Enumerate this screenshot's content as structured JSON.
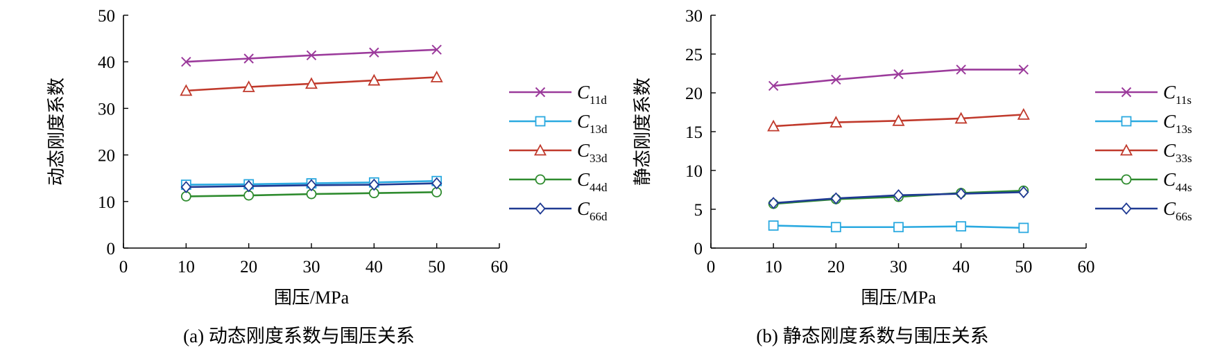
{
  "chart_data": [
    {
      "type": "line",
      "caption": "(a) 动态刚度系数与围压关系",
      "xlabel": "围压/MPa",
      "ylabel": "动态刚度系数",
      "xlim": [
        0,
        60
      ],
      "ylim": [
        0,
        50
      ],
      "xticks": [
        0,
        10,
        20,
        30,
        40,
        50,
        60
      ],
      "yticks": [
        0,
        10,
        20,
        30,
        40,
        50
      ],
      "x": [
        10,
        20,
        30,
        40,
        50
      ],
      "grid": false,
      "legend_position": "right",
      "series": [
        {
          "name": "C",
          "sub": "11d",
          "values": [
            40.0,
            40.7,
            41.4,
            42.0,
            42.6
          ],
          "color": "#9b3a9b",
          "marker": "x"
        },
        {
          "name": "C",
          "sub": "13d",
          "values": [
            13.6,
            13.7,
            13.9,
            14.1,
            14.4
          ],
          "color": "#2aa9e0",
          "marker": "square"
        },
        {
          "name": "C",
          "sub": "33d",
          "values": [
            33.8,
            34.6,
            35.3,
            36.0,
            36.7
          ],
          "color": "#c0392b",
          "marker": "triangle"
        },
        {
          "name": "C",
          "sub": "44d",
          "values": [
            11.1,
            11.3,
            11.6,
            11.8,
            12.0
          ],
          "color": "#2e8b2e",
          "marker": "circle"
        },
        {
          "name": "C",
          "sub": "66d",
          "values": [
            13.1,
            13.3,
            13.5,
            13.6,
            13.9
          ],
          "color": "#1f3a93",
          "marker": "diamond"
        }
      ]
    },
    {
      "type": "line",
      "caption": "(b) 静态刚度系数与围压关系",
      "xlabel": "围压/MPa",
      "ylabel": "静态刚度系数",
      "xlim": [
        0,
        60
      ],
      "ylim": [
        0,
        30
      ],
      "xticks": [
        0,
        10,
        20,
        30,
        40,
        50,
        60
      ],
      "yticks": [
        0,
        5,
        10,
        15,
        20,
        25,
        30
      ],
      "x": [
        10,
        20,
        30,
        40,
        50
      ],
      "grid": false,
      "legend_position": "right",
      "series": [
        {
          "name": "C",
          "sub": "11s",
          "values": [
            20.9,
            21.7,
            22.4,
            23.0,
            23.0
          ],
          "color": "#9b3a9b",
          "marker": "x"
        },
        {
          "name": "C",
          "sub": "13s",
          "values": [
            2.9,
            2.7,
            2.7,
            2.8,
            2.6
          ],
          "color": "#2aa9e0",
          "marker": "square"
        },
        {
          "name": "C",
          "sub": "33s",
          "values": [
            15.7,
            16.2,
            16.4,
            16.7,
            17.2
          ],
          "color": "#c0392b",
          "marker": "triangle"
        },
        {
          "name": "C",
          "sub": "44s",
          "values": [
            5.7,
            6.3,
            6.6,
            7.1,
            7.4
          ],
          "color": "#2e8b2e",
          "marker": "circle"
        },
        {
          "name": "C",
          "sub": "66s",
          "values": [
            5.8,
            6.4,
            6.8,
            7.0,
            7.2
          ],
          "color": "#1f3a93",
          "marker": "diamond"
        }
      ]
    }
  ]
}
